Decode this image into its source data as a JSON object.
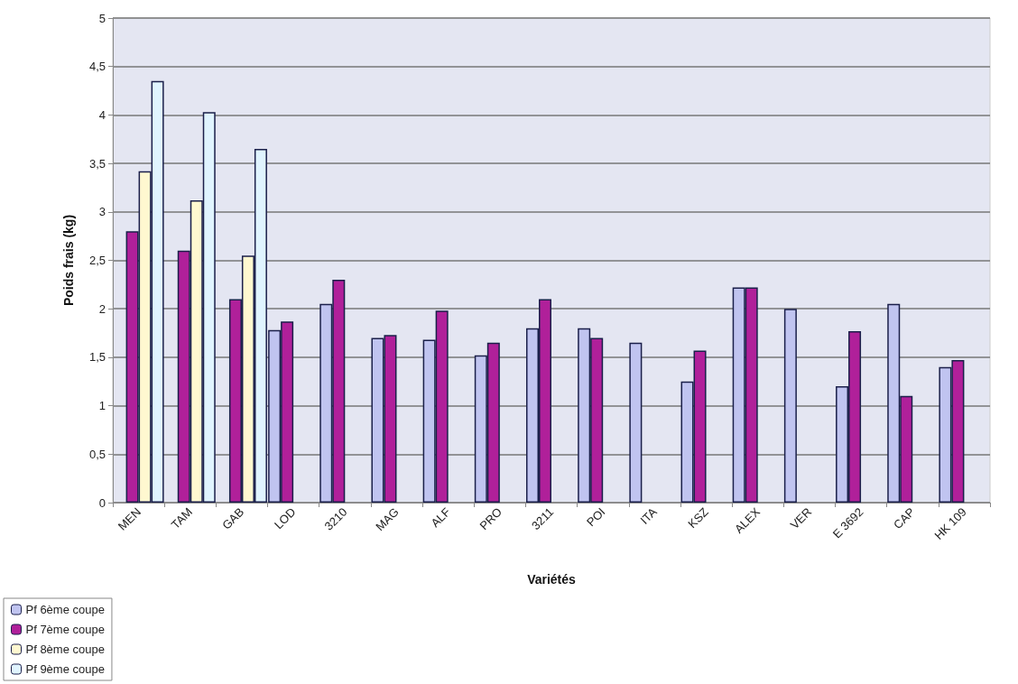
{
  "chart_data": {
    "type": "bar",
    "xlabel": "Variétés",
    "ylabel": "Poids frais (kg)",
    "categories": [
      "MEN",
      "TAM",
      "GAB",
      "LOD",
      "3210",
      "MAG",
      "ALF",
      "PRO",
      "3211",
      "POI",
      "ITA",
      "KSZ",
      "ALEX",
      "VER",
      "E 3692",
      "CAP",
      "HK 109"
    ],
    "series": [
      {
        "name": "Pf 6ème coupe",
        "color": "#c0c4f0",
        "values": [
          null,
          null,
          null,
          1.78,
          2.05,
          1.7,
          1.68,
          1.52,
          1.8,
          1.8,
          1.65,
          1.25,
          2.22,
          2.0,
          1.2,
          2.05,
          1.4
        ]
      },
      {
        "name": "Pf 7ème coupe",
        "color": "#b0209a",
        "values": [
          2.8,
          2.6,
          2.1,
          1.87,
          2.3,
          1.73,
          1.98,
          1.65,
          2.1,
          1.7,
          null,
          1.57,
          2.22,
          null,
          1.77,
          1.1,
          1.47
        ]
      },
      {
        "name": "Pf 8ème coupe",
        "color": "#fff8d0",
        "values": [
          3.42,
          3.12,
          2.55,
          null,
          null,
          null,
          null,
          null,
          null,
          null,
          null,
          null,
          null,
          null,
          null,
          null,
          null
        ]
      },
      {
        "name": "Pf 9ème coupe",
        "color": "#e0f4ff",
        "values": [
          4.35,
          4.03,
          3.65,
          null,
          null,
          null,
          null,
          null,
          null,
          null,
          null,
          null,
          null,
          null,
          null,
          null,
          null
        ]
      }
    ],
    "ylim": [
      0,
      5
    ],
    "yticks": [
      0,
      {
        "value": 0.5,
        "label": "0,5"
      },
      1,
      {
        "value": 1.5,
        "label": "1,5"
      },
      2,
      {
        "value": 2.5,
        "label": "2,5"
      },
      3,
      {
        "value": 3.5,
        "label": "3,5"
      },
      4,
      {
        "value": 4.5,
        "label": "4,5"
      },
      5
    ],
    "grid": "y",
    "legend": "bottom left"
  }
}
